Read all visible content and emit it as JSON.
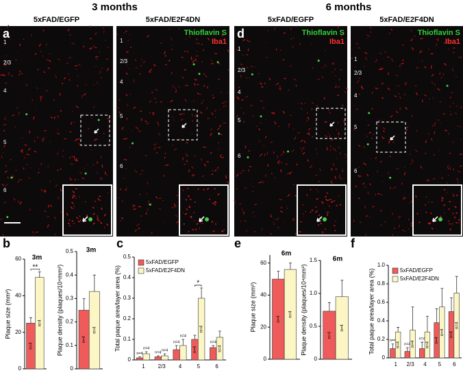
{
  "figure": {
    "groups": [
      {
        "title": "3 months",
        "panels": [
          {
            "letter": "a",
            "header": "5xFAD/EGFP",
            "layers": [
              "1",
              "2/3",
              "4",
              "5",
              "6"
            ]
          },
          {
            "header": "5xFAD/E2F4DN",
            "stains": [
              "Thioflavin S",
              "Iba1"
            ],
            "layers": [
              "1",
              "2/3",
              "4",
              "5",
              "6"
            ]
          }
        ]
      },
      {
        "title": "6 months",
        "panels": [
          {
            "letter": "d",
            "header": "5xFAD/EGFP",
            "stains": [
              "Thioflavin S",
              "Iba1"
            ],
            "layers": [
              "1",
              "2/3",
              "4",
              "5",
              "6"
            ]
          },
          {
            "header": "5xFAD/E2F4DN",
            "stains": [
              "Thioflavin S",
              "Iba1"
            ],
            "layers": [
              "1",
              "2/3",
              "4",
              "5",
              "6"
            ]
          }
        ]
      }
    ]
  },
  "chart_data": [
    {
      "type": "bar",
      "panel_label": "b",
      "title": "3m",
      "y_label": "Plaque size (mm²)",
      "n_label": "n=4",
      "categories": [
        null
      ],
      "ylim": [
        0,
        60
      ],
      "yticks": [
        0,
        20,
        40,
        60
      ],
      "significance": [
        "**"
      ],
      "series": [
        {
          "name": "5xFAD/EGFP",
          "color": "#ef5a5a",
          "values": [
            25
          ],
          "errors": [
            3
          ]
        },
        {
          "name": "5xFAD/E2F4DN",
          "color": "#fbf6c4",
          "values": [
            50
          ],
          "errors": [
            3
          ]
        }
      ]
    },
    {
      "type": "bar",
      "title": "3m",
      "y_label": "Plaque density (plaques/10⁴mm²)",
      "n_label": "n=4",
      "categories": [
        null
      ],
      "ylim": [
        0,
        0.5
      ],
      "yticks": [
        0,
        0.1,
        0.2,
        0.3,
        0.4,
        0.5
      ],
      "series": [
        {
          "name": "5xFAD/EGFP",
          "color": "#ef5a5a",
          "values": [
            0.25
          ],
          "errors": [
            0.05
          ]
        },
        {
          "name": "5xFAD/E2F4DN",
          "color": "#fbf6c4",
          "values": [
            0.33
          ],
          "errors": [
            0.07
          ]
        }
      ]
    },
    {
      "type": "bar",
      "panel_label": "c",
      "y_label": "Total paque area/layer area (%)",
      "n_label": "n=4",
      "legend": "upper left",
      "categories": [
        "1",
        "2/3",
        "4",
        "5",
        "6"
      ],
      "ylim": [
        0,
        0.5
      ],
      "yticks": [
        0,
        0.1,
        0.2,
        0.3,
        0.4,
        0.5
      ],
      "significance": [
        null,
        null,
        null,
        "*",
        null
      ],
      "series": [
        {
          "name": "5xFAD/EGFP",
          "color": "#ef5a5a",
          "values": [
            0.01,
            0.015,
            0.05,
            0.1,
            0.06
          ],
          "errors": [
            0.005,
            0.005,
            0.02,
            0.02,
            0.01
          ]
        },
        {
          "name": "5xFAD/E2F4DN",
          "color": "#fbf6c4",
          "values": [
            0.03,
            0.02,
            0.07,
            0.3,
            0.11
          ],
          "errors": [
            0.01,
            0.01,
            0.03,
            0.05,
            0.03
          ]
        }
      ]
    },
    {
      "type": "bar",
      "panel_label": "e",
      "title": "6m",
      "y_label": "Plaque size (mm²)",
      "n_label": "n=4",
      "categories": [
        null
      ],
      "ylim": [
        0,
        65
      ],
      "yticks": [
        0,
        20,
        40,
        60
      ],
      "series": [
        {
          "name": "5xFAD/EGFP",
          "color": "#ef5a5a",
          "values": [
            50
          ],
          "errors": [
            5
          ]
        },
        {
          "name": "5xFAD/E2F4DN",
          "color": "#fbf6c4",
          "values": [
            56
          ],
          "errors": [
            4
          ]
        }
      ]
    },
    {
      "type": "bar",
      "title": "6m",
      "y_label": "Plaque density (plaques/10⁴mm²)",
      "n_label": "n=4",
      "categories": [
        null
      ],
      "ylim": [
        0,
        1.5
      ],
      "yticks": [
        0,
        0.5,
        {
          "value": 1,
          "label": "1.0"
        },
        1.5
      ],
      "series": [
        {
          "name": "5xFAD/EGFP",
          "color": "#ef5a5a",
          "values": [
            0.73
          ],
          "errors": [
            0.13
          ]
        },
        {
          "name": "5xFAD/E2F4DN",
          "color": "#fbf6c4",
          "values": [
            0.95
          ],
          "errors": [
            0.25
          ]
        }
      ]
    },
    {
      "type": "bar",
      "panel_label": "f",
      "y_label": "Total paque area/layer area (%)",
      "n_label": "n=4",
      "legend": "upper left",
      "categories": [
        "1",
        "2/3",
        "4",
        "5",
        "6"
      ],
      "ylim": [
        0,
        1
      ],
      "yticks": [
        0,
        0.2,
        0.4,
        0.6,
        0.8,
        {
          "value": 1,
          "label": "1.0"
        }
      ],
      "series": [
        {
          "name": "5xFAD/EGFP",
          "color": "#ef5a5a",
          "values": [
            0.1,
            0.07,
            0.1,
            0.38,
            0.5
          ],
          "errors": [
            0.05,
            0.04,
            0.07,
            0.15,
            0.15
          ]
        },
        {
          "name": "5xFAD/E2F4DN",
          "color": "#fbf6c4",
          "values": [
            0.28,
            0.3,
            0.28,
            0.55,
            0.7
          ],
          "errors": [
            0.05,
            0.25,
            0.17,
            0.2,
            0.18
          ]
        }
      ]
    }
  ]
}
